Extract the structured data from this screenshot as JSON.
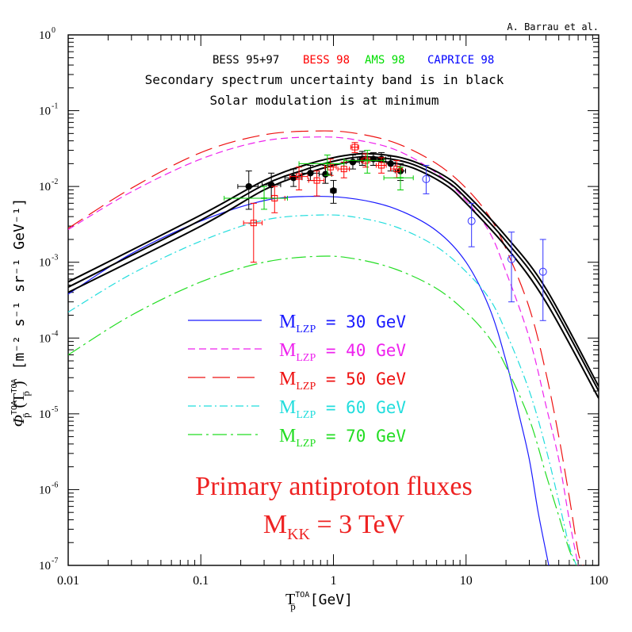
{
  "chart_data": {
    "type": "line",
    "credit": "A. Barrau et al.",
    "xscale": "log",
    "yscale": "log",
    "xlim": [
      0.01,
      100
    ],
    "ylim": [
      1e-07,
      1
    ],
    "x_tick_labels": [
      "0.01",
      "0.1",
      "1",
      "10",
      "100"
    ],
    "x_tick_values": [
      0.01,
      0.1,
      1,
      10,
      100
    ],
    "y_tick_values": [
      1e-07,
      1e-06,
      1e-05,
      0.0001,
      0.001,
      0.01,
      0.1,
      1
    ],
    "y_tick_mantissa": [
      "10",
      "10",
      "10",
      "10",
      "10",
      "10",
      "10",
      "10"
    ],
    "y_tick_exponents": [
      "-7",
      "-6",
      "-5",
      "-4",
      "-3",
      "-2",
      "-1",
      "0"
    ],
    "ylabel": {
      "main": "Φ",
      "main_sub": "p̄",
      "main_sup": "TOA",
      "arg": "(T",
      "arg_sub": "p̄",
      "arg_sup": "TOA",
      "close": ")",
      "units": "[m⁻² s⁻¹ sr⁻¹ GeV⁻¹]"
    },
    "xlabel": {
      "main": "T",
      "sub": "p̄",
      "sup": "TOA",
      "units": "[GeV]"
    },
    "experiments": [
      {
        "name": "BESS 95+97",
        "color": "#000000"
      },
      {
        "name": "BESS 98",
        "color": "#ff0000"
      },
      {
        "name": "AMS 98",
        "color": "#00dd00"
      },
      {
        "name": "CAPRICE 98",
        "color": "#0000ff"
      }
    ],
    "notes": [
      "Secondary spectrum uncertainty band is in black",
      "Solar modulation is at minimum"
    ],
    "legend": [
      {
        "prefix": "M",
        "sub": "LZP",
        "suffix": " = 30 GeV",
        "color": "#1a1aff",
        "dash": ""
      },
      {
        "prefix": "M",
        "sub": "LZP",
        "suffix": " = 40 GeV",
        "color": "#ee22ee",
        "dash": "9,5"
      },
      {
        "prefix": "M",
        "sub": "LZP",
        "suffix": " = 50 GeV",
        "color": "#ee1111",
        "dash": "22,9"
      },
      {
        "prefix": "M",
        "sub": "LZP",
        "suffix": " = 60 GeV",
        "color": "#22dddd",
        "dash": "10,4,2,4"
      },
      {
        "prefix": "M",
        "sub": "LZP",
        "suffix": " = 70 GeV",
        "color": "#22dd22",
        "dash": "18,5,3,5"
      }
    ],
    "annotation": {
      "line1": "Primary antiproton fluxes",
      "line2_prefix": "M",
      "line2_sub": "KK",
      "line2_suffix": " = 3 TeV",
      "color": "#ee2222"
    },
    "secondary_band": {
      "color": "#000000",
      "lower": [
        [
          0.01,
          0.0004
        ],
        [
          0.1,
          0.003
        ],
        [
          0.3,
          0.009
        ],
        [
          0.6,
          0.0145
        ],
        [
          1,
          0.019
        ],
        [
          1.6,
          0.022
        ],
        [
          2.5,
          0.021
        ],
        [
          4,
          0.0175
        ],
        [
          7,
          0.0105
        ],
        [
          10,
          0.006
        ],
        [
          20,
          0.0016
        ],
        [
          40,
          0.0003
        ],
        [
          100,
          1.6e-05
        ]
      ],
      "upper": [
        [
          0.01,
          0.00055
        ],
        [
          0.1,
          0.0042
        ],
        [
          0.3,
          0.012
        ],
        [
          0.6,
          0.019
        ],
        [
          1,
          0.024
        ],
        [
          1.6,
          0.027
        ],
        [
          2.5,
          0.026
        ],
        [
          4,
          0.0215
        ],
        [
          7,
          0.0135
        ],
        [
          10,
          0.008
        ],
        [
          20,
          0.0022
        ],
        [
          40,
          0.00045
        ],
        [
          100,
          2.3e-05
        ]
      ],
      "middle": [
        [
          0.01,
          0.00047
        ],
        [
          0.1,
          0.0036
        ],
        [
          0.3,
          0.0105
        ],
        [
          0.6,
          0.0165
        ],
        [
          1,
          0.0215
        ],
        [
          1.6,
          0.0245
        ],
        [
          2.5,
          0.0235
        ],
        [
          4,
          0.0195
        ],
        [
          7,
          0.012
        ],
        [
          10,
          0.007
        ],
        [
          20,
          0.0019
        ],
        [
          40,
          0.00038
        ],
        [
          100,
          2e-05
        ]
      ]
    },
    "series": [
      {
        "name": "M_LZP = 30 GeV",
        "color": "#1a1aff",
        "dash": "",
        "points": [
          [
            0.01,
            0.00038
          ],
          [
            0.03,
            0.0013
          ],
          [
            0.1,
            0.0035
          ],
          [
            0.3,
            0.0065
          ],
          [
            0.7,
            0.0074
          ],
          [
            1.5,
            0.0068
          ],
          [
            3,
            0.005
          ],
          [
            6,
            0.0026
          ],
          [
            10,
            0.001
          ],
          [
            15,
            0.00025
          ],
          [
            20,
            5e-05
          ],
          [
            25,
            1e-05
          ],
          [
            30,
            2.5e-06
          ],
          [
            35,
            5e-07
          ],
          [
            42,
            1e-07
          ]
        ]
      },
      {
        "name": "M_LZP = 40 GeV",
        "color": "#ee22ee",
        "dash": "9,5",
        "points": [
          [
            0.01,
            0.0027
          ],
          [
            0.03,
            0.0085
          ],
          [
            0.1,
            0.023
          ],
          [
            0.3,
            0.04
          ],
          [
            0.8,
            0.045
          ],
          [
            1.5,
            0.041
          ],
          [
            3,
            0.03
          ],
          [
            6,
            0.015
          ],
          [
            10,
            0.0065
          ],
          [
            15,
            0.0025
          ],
          [
            20,
            0.00075
          ],
          [
            30,
            0.0001
          ],
          [
            40,
            1.3e-05
          ],
          [
            50,
            2.5e-06
          ],
          [
            60,
            4e-07
          ],
          [
            70,
            1e-07
          ]
        ]
      },
      {
        "name": "M_LZP = 50 GeV",
        "color": "#ee1111",
        "dash": "22,9",
        "points": [
          [
            0.01,
            0.0028
          ],
          [
            0.03,
            0.0095
          ],
          [
            0.1,
            0.028
          ],
          [
            0.3,
            0.048
          ],
          [
            0.8,
            0.054
          ],
          [
            1.5,
            0.05
          ],
          [
            3,
            0.037
          ],
          [
            6,
            0.02
          ],
          [
            10,
            0.0095
          ],
          [
            15,
            0.004
          ],
          [
            20,
            0.0015
          ],
          [
            30,
            0.00025
          ],
          [
            40,
            3.5e-05
          ],
          [
            50,
            5e-06
          ],
          [
            60,
            8e-07
          ],
          [
            70,
            1.5e-07
          ],
          [
            76,
            1e-07
          ]
        ]
      },
      {
        "name": "M_LZP = 60 GeV",
        "color": "#22dddd",
        "dash": "10,4,2,4",
        "points": [
          [
            0.01,
            0.00022
          ],
          [
            0.03,
            0.0007
          ],
          [
            0.1,
            0.0019
          ],
          [
            0.3,
            0.0036
          ],
          [
            0.8,
            0.0042
          ],
          [
            1.5,
            0.0039
          ],
          [
            3,
            0.0029
          ],
          [
            6,
            0.0016
          ],
          [
            10,
            0.00075
          ],
          [
            15,
            0.00033
          ],
          [
            20,
            0.00012
          ],
          [
            30,
            2e-05
          ],
          [
            40,
            3.5e-06
          ],
          [
            50,
            7e-07
          ],
          [
            60,
            1.8e-07
          ],
          [
            68,
            1e-07
          ]
        ]
      },
      {
        "name": "M_LZP = 70 GeV",
        "color": "#22dd22",
        "dash": "18,5,3,5",
        "points": [
          [
            0.01,
            6e-05
          ],
          [
            0.03,
            0.0002
          ],
          [
            0.1,
            0.00055
          ],
          [
            0.3,
            0.001
          ],
          [
            0.8,
            0.0012
          ],
          [
            1.5,
            0.0011
          ],
          [
            3,
            0.0008
          ],
          [
            6,
            0.00045
          ],
          [
            10,
            0.00022
          ],
          [
            15,
            0.0001
          ],
          [
            20,
            4.2e-05
          ],
          [
            30,
            8.5e-06
          ],
          [
            40,
            1.6e-06
          ],
          [
            50,
            4.5e-07
          ],
          [
            60,
            1.6e-07
          ],
          [
            68,
            1e-07
          ]
        ]
      }
    ],
    "data_points": {
      "BESS 95+97": {
        "color": "#000000",
        "marker": "filled-circle",
        "points": [
          {
            "x": 0.23,
            "y": 0.01,
            "ylo": 0.005,
            "yhi": 0.016,
            "xlo": 0.19,
            "xhi": 0.27
          },
          {
            "x": 0.34,
            "y": 0.0105,
            "ylo": 0.007,
            "yhi": 0.015,
            "xlo": 0.29,
            "xhi": 0.4
          },
          {
            "x": 0.5,
            "y": 0.013,
            "ylo": 0.01,
            "yhi": 0.017,
            "xlo": 0.43,
            "xhi": 0.58
          },
          {
            "x": 0.67,
            "y": 0.015,
            "ylo": 0.012,
            "yhi": 0.019,
            "xlo": 0.58,
            "xhi": 0.78
          },
          {
            "x": 0.87,
            "y": 0.0145,
            "ylo": 0.011,
            "yhi": 0.019,
            "xlo": 0.78,
            "xhi": 0.97
          },
          {
            "x": 1.0,
            "y": 0.0088,
            "ylo": 0.006,
            "yhi": 0.012,
            "xlo": 0.95,
            "xhi": 1.05
          },
          {
            "x": 1.4,
            "y": 0.021,
            "ylo": 0.017,
            "yhi": 0.026,
            "xlo": 1.25,
            "xhi": 1.57
          },
          {
            "x": 1.65,
            "y": 0.023,
            "ylo": 0.019,
            "yhi": 0.029,
            "xlo": 1.52,
            "xhi": 1.8
          },
          {
            "x": 2.0,
            "y": 0.023,
            "ylo": 0.019,
            "yhi": 0.028,
            "xlo": 1.83,
            "xhi": 2.18
          },
          {
            "x": 2.3,
            "y": 0.023,
            "ylo": 0.019,
            "yhi": 0.028,
            "xlo": 2.15,
            "xhi": 2.48
          },
          {
            "x": 2.7,
            "y": 0.02,
            "ylo": 0.016,
            "yhi": 0.025,
            "xlo": 2.5,
            "xhi": 2.92
          },
          {
            "x": 3.2,
            "y": 0.016,
            "ylo": 0.012,
            "yhi": 0.02,
            "xlo": 2.92,
            "xhi": 3.5
          }
        ]
      },
      "BESS 98": {
        "color": "#ff0000",
        "marker": "open-square",
        "points": [
          {
            "x": 0.25,
            "y": 0.0033,
            "ylo": 0.001,
            "yhi": 0.006,
            "xlo": 0.21,
            "xhi": 0.29
          },
          {
            "x": 0.36,
            "y": 0.007,
            "ylo": 0.0045,
            "yhi": 0.01,
            "xlo": 0.3,
            "xhi": 0.43
          },
          {
            "x": 0.55,
            "y": 0.0135,
            "ylo": 0.009,
            "yhi": 0.018,
            "xlo": 0.47,
            "xhi": 0.64
          },
          {
            "x": 0.75,
            "y": 0.012,
            "ylo": 0.0075,
            "yhi": 0.016,
            "xlo": 0.65,
            "xhi": 0.85
          },
          {
            "x": 0.95,
            "y": 0.018,
            "ylo": 0.014,
            "yhi": 0.023,
            "xlo": 0.86,
            "xhi": 1.05
          },
          {
            "x": 1.2,
            "y": 0.017,
            "ylo": 0.013,
            "yhi": 0.021,
            "xlo": 1.08,
            "xhi": 1.32
          },
          {
            "x": 1.45,
            "y": 0.033,
            "ylo": 0.028,
            "yhi": 0.038,
            "xlo": 1.35,
            "xhi": 1.55
          },
          {
            "x": 1.75,
            "y": 0.022,
            "ylo": 0.018,
            "yhi": 0.027,
            "xlo": 1.62,
            "xhi": 1.88
          },
          {
            "x": 2.3,
            "y": 0.019,
            "ylo": 0.015,
            "yhi": 0.024,
            "xlo": 2.1,
            "xhi": 2.5
          },
          {
            "x": 3.0,
            "y": 0.017,
            "ylo": 0.013,
            "yhi": 0.022,
            "xlo": 2.7,
            "xhi": 3.3
          }
        ]
      },
      "AMS 98": {
        "color": "#00cc00",
        "marker": "cross",
        "points": [
          {
            "x": 0.3,
            "y": 0.007,
            "ylo": 0.005,
            "yhi": 0.01,
            "xlo": 0.15,
            "xhi": 0.45
          },
          {
            "x": 0.9,
            "y": 0.02,
            "ylo": 0.014,
            "yhi": 0.026,
            "xlo": 0.55,
            "xhi": 1.2
          },
          {
            "x": 1.8,
            "y": 0.022,
            "ylo": 0.015,
            "yhi": 0.03,
            "xlo": 1.2,
            "xhi": 2.4
          },
          {
            "x": 3.2,
            "y": 0.013,
            "ylo": 0.009,
            "yhi": 0.018,
            "xlo": 2.4,
            "xhi": 4.0
          }
        ]
      },
      "CAPRICE 98": {
        "color": "#3333ff",
        "marker": "open-circle",
        "points": [
          {
            "x": 5.0,
            "y": 0.0125,
            "ylo": 0.008,
            "yhi": 0.019
          },
          {
            "x": 11.0,
            "y": 0.0035,
            "ylo": 0.0016,
            "yhi": 0.006
          },
          {
            "x": 22.0,
            "y": 0.0011,
            "ylo": 0.0003,
            "yhi": 0.0025
          },
          {
            "x": 38.0,
            "y": 0.00075,
            "ylo": 0.00017,
            "yhi": 0.002
          }
        ]
      }
    }
  }
}
